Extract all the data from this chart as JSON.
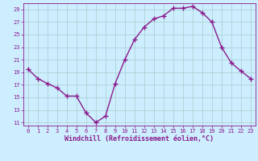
{
  "x": [
    0,
    1,
    2,
    3,
    4,
    5,
    6,
    7,
    8,
    9,
    10,
    11,
    12,
    13,
    14,
    15,
    16,
    17,
    18,
    19,
    20,
    21,
    22,
    23
  ],
  "y": [
    19.5,
    18.0,
    17.2,
    16.5,
    15.2,
    15.2,
    12.5,
    11.0,
    12.0,
    17.2,
    21.0,
    24.2,
    26.2,
    27.5,
    28.0,
    29.2,
    29.2,
    29.5,
    28.5,
    27.0,
    23.0,
    20.5,
    19.2,
    18.0
  ],
  "line_color": "#8b1a8b",
  "marker": "+",
  "marker_size": 4,
  "bg_color": "#cceeff",
  "grid_color": "#aacccc",
  "xlabel": "Windchill (Refroidissement éolien,°C)",
  "xlim": [
    -0.5,
    23.5
  ],
  "ylim": [
    10.5,
    30.0
  ],
  "yticks": [
    11,
    13,
    15,
    17,
    19,
    21,
    23,
    25,
    27,
    29
  ],
  "xticks": [
    0,
    1,
    2,
    3,
    4,
    5,
    6,
    7,
    8,
    9,
    10,
    11,
    12,
    13,
    14,
    15,
    16,
    17,
    18,
    19,
    20,
    21,
    22,
    23
  ],
  "tick_color": "#8b1a8b",
  "tick_fontsize": 5.0,
  "xlabel_fontsize": 6.0,
  "linewidth": 1.0,
  "markeredgewidth": 1.0
}
